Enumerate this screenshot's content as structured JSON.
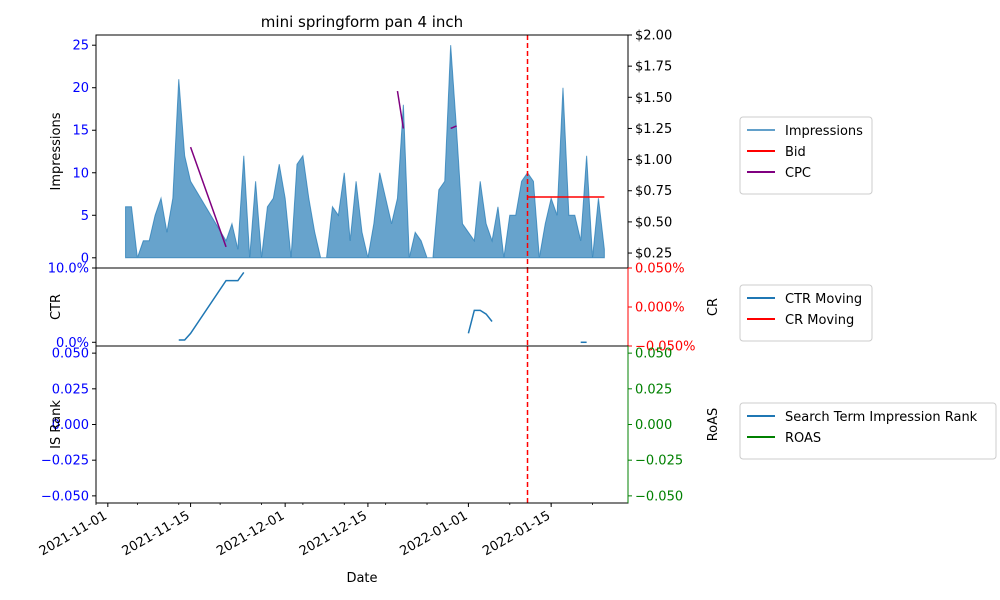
{
  "chart_data": {
    "type": "line",
    "title": "mini springform pan 4 inch",
    "xlabel": "Date",
    "x_ticks": [
      "2021-11-01",
      "2021-11-15",
      "2021-12-01",
      "2021-12-15",
      "2022-01-01",
      "2022-01-15"
    ],
    "xlim": [
      "2021-10-30",
      "2022-01-28"
    ],
    "marker_date": "2022-01-11",
    "colors": {
      "impressions": "#1f77b4",
      "bid": "#ff0000",
      "cpc": "#800080",
      "left_axis": "#0000ff",
      "right_axis_cr": "#ff0000",
      "right_axis_roas": "#008000",
      "marker": "#ff0000"
    },
    "panels": [
      {
        "ylabel_left": "Impressions",
        "ylabel_right": "",
        "left_ticks": [
          "0",
          "5",
          "10",
          "15",
          "20",
          "25"
        ],
        "right_ticks": [
          "$0.25",
          "$0.50",
          "$0.75",
          "$1.00",
          "$1.25",
          "$1.50",
          "$1.75",
          "$2.00"
        ],
        "ylim_left": [
          -1.2,
          26.2
        ],
        "ylim_right": [
          0.13,
          2.0
        ],
        "legend": [
          "Impressions",
          "Bid",
          "CPC"
        ],
        "series": [
          {
            "name": "Impressions",
            "kind": "area",
            "points": [
              [
                "2021-11-04",
                6
              ],
              [
                "2021-11-05",
                6
              ],
              [
                "2021-11-06",
                0
              ],
              [
                "2021-11-07",
                2
              ],
              [
                "2021-11-08",
                2
              ],
              [
                "2021-11-09",
                5
              ],
              [
                "2021-11-10",
                7
              ],
              [
                "2021-11-11",
                3
              ],
              [
                "2021-11-12",
                7
              ],
              [
                "2021-11-13",
                21
              ],
              [
                "2021-11-14",
                12
              ],
              [
                "2021-11-15",
                9
              ],
              [
                "2021-11-21",
                2
              ],
              [
                "2021-11-22",
                4
              ],
              [
                "2021-11-23",
                1
              ],
              [
                "2021-11-24",
                12
              ],
              [
                "2021-11-25",
                0
              ],
              [
                "2021-11-26",
                9
              ],
              [
                "2021-11-27",
                0
              ],
              [
                "2021-11-28",
                6
              ],
              [
                "2021-11-29",
                7
              ],
              [
                "2021-11-30",
                11
              ],
              [
                "2021-12-01",
                7
              ],
              [
                "2021-12-02",
                0
              ],
              [
                "2021-12-03",
                11
              ],
              [
                "2021-12-04",
                12
              ],
              [
                "2021-12-05",
                7
              ],
              [
                "2021-12-06",
                3
              ],
              [
                "2021-12-07",
                0
              ],
              [
                "2021-12-08",
                0
              ],
              [
                "2021-12-09",
                6
              ],
              [
                "2021-12-10",
                5
              ],
              [
                "2021-12-11",
                10
              ],
              [
                "2021-12-12",
                2
              ],
              [
                "2021-12-13",
                9
              ],
              [
                "2021-12-14",
                3
              ],
              [
                "2021-12-15",
                0
              ],
              [
                "2021-12-16",
                4
              ],
              [
                "2021-12-17",
                10
              ],
              [
                "2021-12-18",
                7
              ],
              [
                "2021-12-19",
                4
              ],
              [
                "2021-12-20",
                7
              ],
              [
                "2021-12-21",
                18
              ],
              [
                "2021-12-22",
                0
              ],
              [
                "2021-12-23",
                3
              ],
              [
                "2021-12-24",
                2
              ],
              [
                "2021-12-25",
                0
              ],
              [
                "2021-12-26",
                0
              ],
              [
                "2021-12-27",
                8
              ],
              [
                "2021-12-28",
                9
              ],
              [
                "2021-12-29",
                25
              ],
              [
                "2021-12-30",
                15
              ],
              [
                "2021-12-31",
                4
              ],
              [
                "2022-01-01",
                3
              ],
              [
                "2022-01-02",
                2
              ],
              [
                "2022-01-03",
                9
              ],
              [
                "2022-01-04",
                4
              ],
              [
                "2022-01-05",
                2
              ],
              [
                "2022-01-06",
                6
              ],
              [
                "2022-01-07",
                0
              ],
              [
                "2022-01-08",
                5
              ],
              [
                "2022-01-09",
                5
              ],
              [
                "2022-01-10",
                9
              ],
              [
                "2022-01-11",
                10
              ],
              [
                "2022-01-12",
                9
              ],
              [
                "2022-01-13",
                0
              ],
              [
                "2022-01-14",
                4
              ],
              [
                "2022-01-15",
                7
              ],
              [
                "2022-01-16",
                5
              ],
              [
                "2022-01-17",
                20
              ],
              [
                "2022-01-18",
                5
              ],
              [
                "2022-01-19",
                5
              ],
              [
                "2022-01-20",
                2
              ],
              [
                "2022-01-21",
                12
              ],
              [
                "2022-01-22",
                0
              ],
              [
                "2022-01-23",
                7
              ],
              [
                "2022-01-24",
                1
              ]
            ]
          },
          {
            "name": "Bid",
            "kind": "line",
            "axis": "right",
            "points": [
              [
                "2022-01-11",
                0.7
              ],
              [
                "2022-01-24",
                0.7
              ]
            ]
          },
          {
            "name": "CPC",
            "kind": "line",
            "axis": "right",
            "segments": [
              [
                [
                  "2021-11-15",
                  1.1
                ],
                [
                  "2021-11-21",
                  0.3
                ]
              ],
              [
                [
                  "2021-12-20",
                  1.55
                ],
                [
                  "2021-12-21",
                  1.25
                ]
              ],
              [
                [
                  "2021-12-29",
                  1.25
                ],
                [
                  "2021-12-30",
                  1.27
                ]
              ]
            ]
          }
        ]
      },
      {
        "ylabel_left": "CTR",
        "ylabel_right": "CR",
        "left_ticks": [
          "0.0%",
          "10.0%"
        ],
        "right_ticks": [
          "−0.050%",
          "0.000%",
          "0.050%"
        ],
        "ylim_left": [
          -0.005,
          0.1
        ],
        "ylim_right": [
          -0.05,
          0.05
        ],
        "legend": [
          "CTR Moving",
          "CR Moving"
        ],
        "series": [
          {
            "name": "CTR Moving",
            "kind": "line",
            "axis": "left",
            "segments": [
              [
                [
                  "2021-11-13",
                  0.003
                ],
                [
                  "2021-11-14",
                  0.003
                ],
                [
                  "2021-11-15",
                  0.012
                ],
                [
                  "2021-11-21",
                  0.083
                ],
                [
                  "2021-11-23",
                  0.083
                ],
                [
                  "2021-11-24",
                  0.094
                ]
              ],
              [
                [
                  "2022-01-01",
                  0.012
                ],
                [
                  "2022-01-02",
                  0.043
                ],
                [
                  "2022-01-03",
                  0.043
                ],
                [
                  "2022-01-04",
                  0.038
                ],
                [
                  "2022-01-05",
                  0.028
                ]
              ],
              [
                [
                  "2022-01-20",
                  0.0
                ],
                [
                  "2022-01-21",
                  0.0
                ]
              ]
            ]
          },
          {
            "name": "CR Moving",
            "kind": "line",
            "axis": "right",
            "segments": []
          }
        ]
      },
      {
        "ylabel_left": "IS Rank",
        "ylabel_right": "RoAS",
        "left_ticks": [
          "−0.050",
          "−0.025",
          "0.000",
          "0.025",
          "0.050"
        ],
        "right_ticks": [
          "−0.050",
          "−0.025",
          "0.000",
          "0.025",
          "0.050"
        ],
        "ylim_left": [
          -0.055,
          0.055
        ],
        "ylim_right": [
          -0.055,
          0.055
        ],
        "legend": [
          "Search Term Impression Rank",
          "ROAS"
        ],
        "series": [
          {
            "name": "Search Term Impression Rank",
            "kind": "line",
            "axis": "left",
            "segments": []
          },
          {
            "name": "ROAS",
            "kind": "line",
            "axis": "right",
            "segments": []
          }
        ]
      }
    ]
  }
}
